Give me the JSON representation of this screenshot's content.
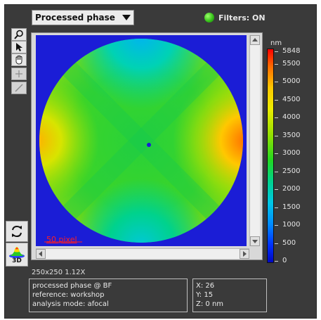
{
  "header": {
    "view_select": "Processed phase",
    "filters_label": "Filters: ON",
    "filters_color": "#36c21a"
  },
  "toolbar": {
    "tools": [
      {
        "icon": "zoom-icon"
      },
      {
        "icon": "pointer-icon"
      },
      {
        "icon": "hand-pan-icon"
      },
      {
        "icon": "crosshair-icon"
      },
      {
        "icon": "line-icon"
      }
    ],
    "bottom_tools": [
      {
        "icon": "refresh-icon"
      },
      {
        "icon": "3d-view-icon",
        "label": "3D"
      }
    ]
  },
  "image": {
    "scalebar_label": "50 pixel",
    "scalebar_color": "#ff1f1f",
    "background_color": "#1b1dd6"
  },
  "color_scale": {
    "unit": "nm",
    "labels": [
      "5848",
      "5500",
      "5000",
      "4500",
      "4000",
      "3500",
      "3000",
      "2500",
      "2000",
      "1500",
      "1000",
      "500",
      "0"
    ],
    "max": 5848,
    "min": 0
  },
  "status": {
    "dimensions": "250x250 1.12X",
    "info_left": [
      "processed phase @ BF",
      "reference: workshop",
      "analysis mode: afocal"
    ],
    "info_right": [
      "X: 26",
      "Y: 15",
      "Z: 0 nm"
    ]
  }
}
